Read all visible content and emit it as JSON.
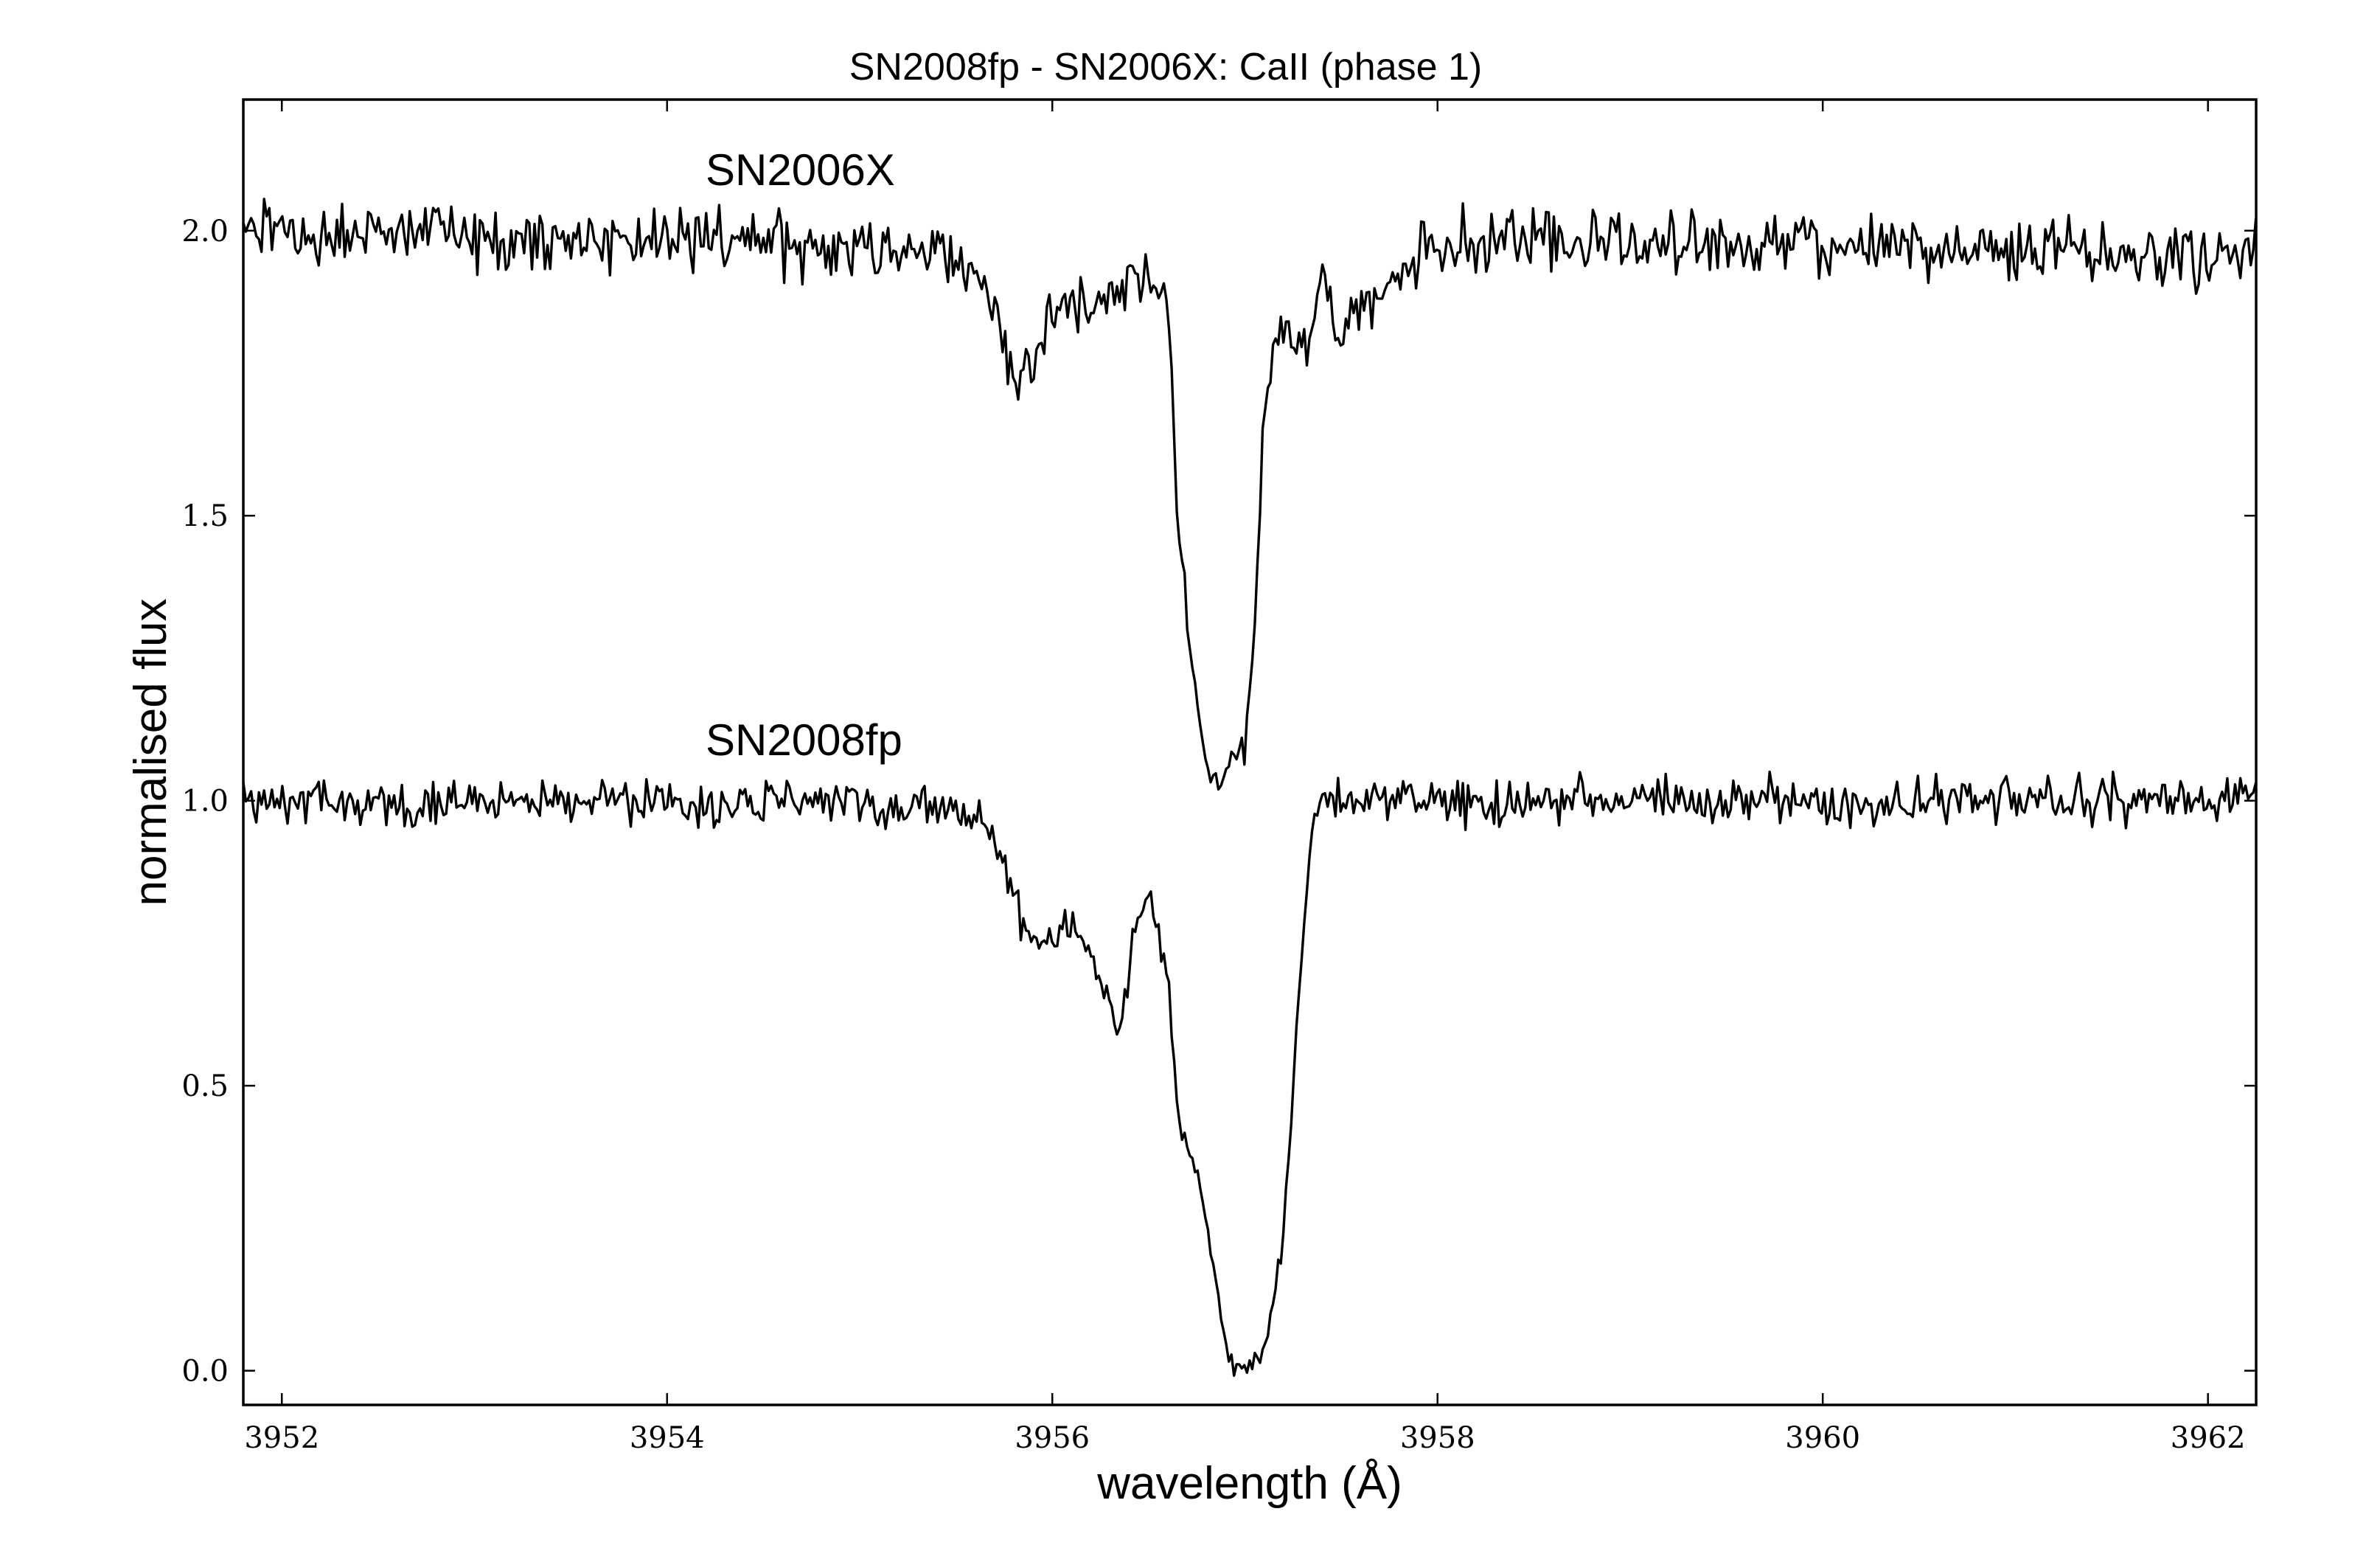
{
  "chart_data": {
    "type": "line",
    "title": "SN2008fp - SN2006X: CaII (phase 1)",
    "xlabel": "wavelength (Å)",
    "ylabel": "normalised flux",
    "xlim": [
      3951.8,
      3962.25
    ],
    "ylim": [
      -0.06,
      2.23
    ],
    "x_ticks": [
      3952,
      3954,
      3956,
      3958,
      3960,
      3962
    ],
    "y_ticks": [
      0.0,
      0.5,
      1.0,
      1.5,
      2.0
    ],
    "x_tick_labels": [
      "3952",
      "3954",
      "3956",
      "3958",
      "3960",
      "3962"
    ],
    "y_tick_labels": [
      "0.0",
      "0.5",
      "1.0",
      "1.5",
      "2.0"
    ],
    "grid": false,
    "legend": "none",
    "annotations": [
      {
        "text": "SN2006X",
        "x": 3954.2,
        "y": 2.08
      },
      {
        "text": "SN2008fp",
        "x": 3954.2,
        "y": 1.08
      }
    ],
    "series": [
      {
        "label": "SN2006X",
        "baseline": 2.0,
        "noise": 0.028,
        "x": [
          3951.8,
          3955.4,
          3955.6,
          3955.75,
          3955.8,
          3955.9,
          3956.0,
          3956.1,
          3956.2,
          3956.3,
          3956.45,
          3956.6,
          3956.65,
          3956.72,
          3956.8,
          3956.88,
          3956.93,
          3957.0,
          3957.05,
          3957.1,
          3957.2,
          3957.3,
          3957.4,
          3957.5,
          3957.55,
          3957.7,
          3958.0,
          3962.25
        ],
        "y": [
          2.0,
          1.97,
          1.93,
          1.82,
          1.73,
          1.76,
          1.85,
          1.88,
          1.86,
          1.89,
          1.92,
          1.87,
          1.5,
          1.25,
          1.06,
          1.02,
          1.08,
          1.09,
          1.3,
          1.7,
          1.85,
          1.78,
          1.92,
          1.8,
          1.84,
          1.9,
          1.98,
          1.96
        ]
      },
      {
        "label": "SN2008fp",
        "baseline": 1.0,
        "noise": 0.02,
        "x": [
          3951.8,
          3955.4,
          3955.65,
          3955.75,
          3955.85,
          3956.0,
          3956.1,
          3956.2,
          3956.3,
          3956.35,
          3956.45,
          3956.5,
          3956.6,
          3956.65,
          3956.75,
          3956.85,
          3956.92,
          3957.0,
          3957.1,
          3957.2,
          3957.28,
          3957.35,
          3957.5,
          3962.25
        ],
        "y": [
          1.0,
          0.99,
          0.96,
          0.88,
          0.77,
          0.76,
          0.79,
          0.73,
          0.65,
          0.59,
          0.82,
          0.83,
          0.7,
          0.44,
          0.35,
          0.16,
          0.02,
          0.0,
          0.03,
          0.23,
          0.65,
          0.97,
          1.0,
          1.0
        ]
      }
    ]
  }
}
